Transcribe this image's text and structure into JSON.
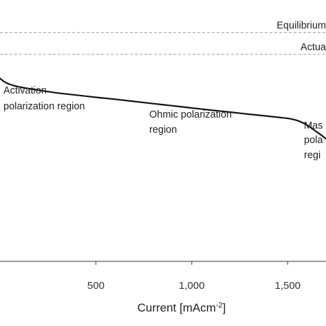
{
  "chart_data": {
    "type": "line",
    "xlabel_main": "Current [mAcm",
    "xlabel_sup": "-2",
    "xlabel_end": "]",
    "x_ticks": [
      500,
      1000,
      1500
    ],
    "x_tick_labels": [
      "500",
      "1,000",
      "1,500"
    ],
    "xlim": [
      0,
      1700
    ],
    "ylim": [
      0,
      1.2
    ],
    "grid": false,
    "reference_lines": [
      {
        "label": "Equilibrium",
        "y": 1.05,
        "style": "dashed"
      },
      {
        "label": "Actua",
        "y": 0.95,
        "style": "dashed"
      }
    ],
    "series": [
      {
        "x": [
          0,
          20,
          50,
          100,
          200,
          300,
          400,
          500,
          600,
          700,
          800,
          900,
          1000,
          1100,
          1200,
          1300,
          1400,
          1450,
          1500,
          1530,
          1560,
          1600,
          1640,
          1680,
          1700
        ],
        "y": [
          0.84,
          0.825,
          0.812,
          0.8,
          0.785,
          0.772,
          0.762,
          0.752,
          0.743,
          0.733,
          0.723,
          0.713,
          0.703,
          0.693,
          0.684,
          0.674,
          0.665,
          0.66,
          0.655,
          0.65,
          0.642,
          0.625,
          0.6,
          0.575,
          0.56
        ]
      }
    ],
    "annotations": [
      {
        "lines": [
          "Activation",
          "polarization region"
        ]
      },
      {
        "lines": [
          "Ohmic polarization",
          "region"
        ]
      },
      {
        "lines": [
          "Mas",
          "pola",
          "regi"
        ]
      }
    ]
  }
}
